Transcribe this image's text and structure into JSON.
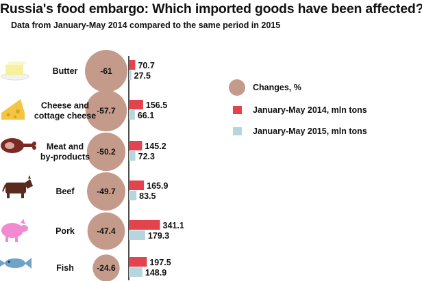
{
  "title": "Russia's food embargo: Which imported goods have been affected?",
  "subtitle": "Data from January-May 2014 compared to the same period in 2015",
  "colors": {
    "circle": "#c49a8a",
    "bar2014": "#e2434d",
    "bar2015": "#b6d6dd",
    "axis": "#000000",
    "icon": "#6b2a23"
  },
  "legend": {
    "changes": "Changes, %",
    "y2014": "January-May 2014, mln tons",
    "y2015": "January-May 2015, mln tons"
  },
  "items": [
    {
      "label_lines": [
        "Butter"
      ],
      "icon": "butter-icon",
      "change_label": "-61"
    },
    {
      "label_lines": [
        "Cheese and",
        "cottage cheese"
      ],
      "icon": "cheese-icon",
      "change_label": "-57.7"
    },
    {
      "label_lines": [
        "Meat and",
        "by-products"
      ],
      "icon": "meat-icon",
      "change_label": "-50.2"
    },
    {
      "label_lines": [
        "Beef"
      ],
      "icon": "cow-icon",
      "change_label": "-49.7"
    },
    {
      "label_lines": [
        "Pork"
      ],
      "icon": "pig-icon",
      "change_label": "-47.4"
    },
    {
      "label_lines": [
        "Fish"
      ],
      "icon": "fish-icon",
      "change_label": "-24.6"
    }
  ],
  "chart_data": {
    "type": "bar",
    "title": "Russia's food embargo: Which imported goods have been affected?",
    "subtitle": "Data from January-May 2014 compared to the same period in 2015",
    "categories": [
      "Butter",
      "Cheese and cottage cheese",
      "Meat and by-products",
      "Beef",
      "Pork",
      "Fish"
    ],
    "series": [
      {
        "name": "January-May 2014, mln tons",
        "values": [
          70.7,
          156.5,
          145.2,
          165.9,
          341.1,
          197.5
        ]
      },
      {
        "name": "January-May 2015, mln tons",
        "values": [
          27.5,
          66.1,
          72.3,
          83.5,
          179.3,
          148.9
        ]
      }
    ],
    "changes": {
      "name": "Changes, %",
      "values": [
        -61,
        -57.7,
        -50.2,
        -49.7,
        -47.4,
        -24.6
      ]
    },
    "legend_position": "right"
  }
}
